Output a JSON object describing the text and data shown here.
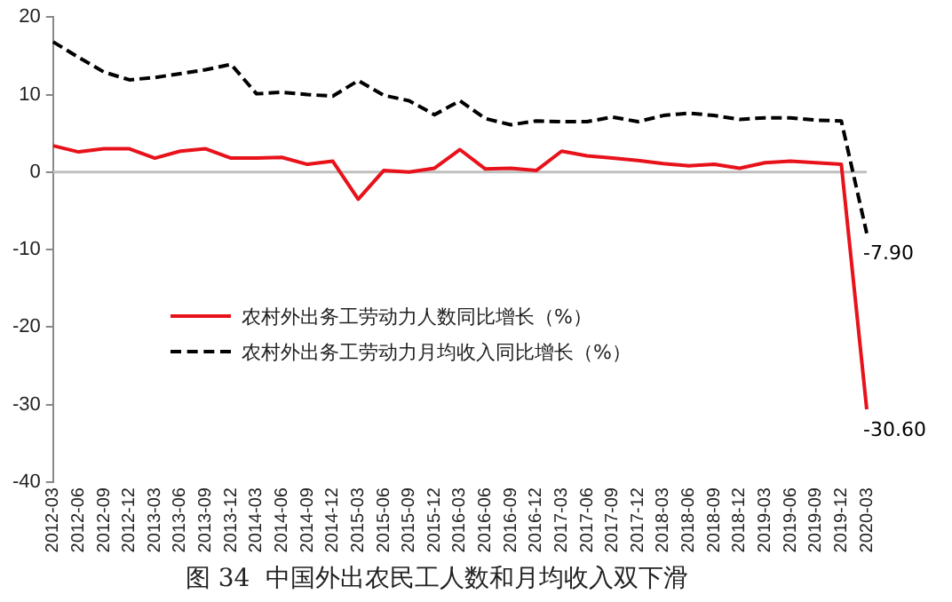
{
  "chart_data": {
    "type": "line",
    "title": "图 34  中国外出农民工人数和月均收入双下滑",
    "categories": [
      "2012-03",
      "2012-06",
      "2012-09",
      "2012-12",
      "2013-03",
      "2013-06",
      "2013-09",
      "2013-12",
      "2014-03",
      "2014-06",
      "2014-09",
      "2014-12",
      "2015-03",
      "2015-06",
      "2015-09",
      "2015-12",
      "2016-03",
      "2016-06",
      "2016-09",
      "2016-12",
      "2017-03",
      "2017-06",
      "2017-09",
      "2017-12",
      "2018-03",
      "2018-06",
      "2018-09",
      "2018-12",
      "2019-03",
      "2019-06",
      "2019-09",
      "2019-12",
      "2020-03"
    ],
    "series": [
      {
        "name": "农村外出务工劳动力人数同比增长（%）",
        "color": "#e8121b",
        "line_style": "solid",
        "values": [
          3.4,
          2.6,
          3.0,
          3.0,
          1.8,
          2.7,
          3.0,
          1.8,
          1.8,
          1.9,
          1.0,
          1.4,
          -3.5,
          0.2,
          0.0,
          0.5,
          2.9,
          0.4,
          0.5,
          0.2,
          2.7,
          2.1,
          1.8,
          1.5,
          1.1,
          0.8,
          1.0,
          0.5,
          1.2,
          1.4,
          1.2,
          1.0,
          -30.6
        ],
        "value_labels": [
          null,
          null,
          null,
          null,
          null,
          null,
          null,
          null,
          null,
          null,
          null,
          null,
          null,
          null,
          null,
          null,
          null,
          null,
          null,
          null,
          null,
          null,
          null,
          null,
          null,
          null,
          null,
          null,
          null,
          null,
          null,
          null,
          "-30.60"
        ]
      },
      {
        "name": "农村外出务工劳动力月均收入同比增长（%）",
        "color": "#000000",
        "line_style": "dashed",
        "values": [
          16.8,
          14.8,
          12.9,
          11.9,
          12.2,
          12.7,
          13.2,
          13.9,
          10.1,
          10.3,
          10.0,
          9.8,
          11.8,
          9.9,
          9.2,
          7.4,
          9.2,
          6.9,
          6.1,
          6.6,
          6.5,
          6.5,
          7.1,
          6.5,
          7.3,
          7.6,
          7.3,
          6.8,
          7.0,
          7.0,
          6.7,
          6.6,
          -7.9
        ],
        "value_labels": [
          null,
          null,
          null,
          null,
          null,
          null,
          null,
          null,
          null,
          null,
          null,
          null,
          null,
          null,
          null,
          null,
          null,
          null,
          null,
          null,
          null,
          null,
          null,
          null,
          null,
          null,
          null,
          null,
          null,
          null,
          null,
          null,
          "-7.90"
        ]
      }
    ],
    "ylim": [
      -40,
      20
    ],
    "yticks": [
      -40,
      -30,
      -20,
      -10,
      0,
      10,
      20
    ],
    "ref_lines": [
      {
        "axis": "y",
        "value": 0,
        "color": "#bfbfbf"
      }
    ],
    "grid": false,
    "legend": "left",
    "marker": "none"
  }
}
